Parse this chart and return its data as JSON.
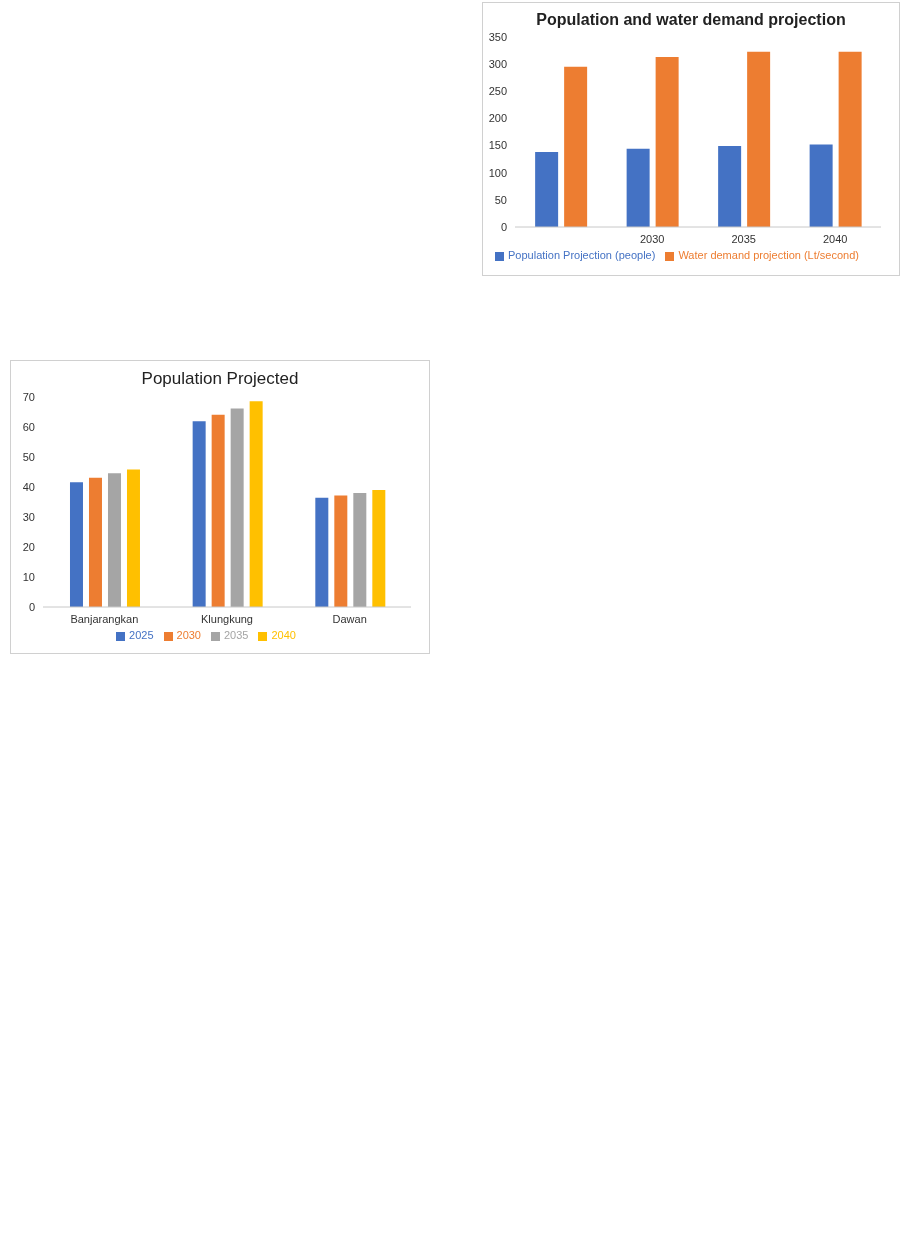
{
  "chart_data": [
    {
      "type": "bar",
      "title": "Population Projected",
      "categories": [
        "Banjarangkan",
        "Klungkung",
        "Dawan"
      ],
      "series": [
        {
          "name": "2025",
          "color": "#4472c4",
          "values": [
            41.6,
            61.9,
            36.4
          ]
        },
        {
          "name": "2030",
          "color": "#ed7d31",
          "values": [
            43.1,
            64.1,
            37.2
          ]
        },
        {
          "name": "2035",
          "color": "#a5a5a5",
          "values": [
            44.6,
            66.2,
            38.0
          ]
        },
        {
          "name": "2040",
          "color": "#ffc000",
          "values": [
            45.8,
            68.6,
            39.0
          ]
        }
      ],
      "ylim": [
        0,
        70
      ],
      "yticks": [
        0,
        10,
        20,
        30,
        40,
        50,
        60,
        70
      ],
      "grid": false,
      "legend": "bottom"
    },
    {
      "type": "bar",
      "title": "Population and water demand projection",
      "categories": [
        null,
        "2030",
        "2035",
        "2040"
      ],
      "series": [
        {
          "name": "Population Projection (people)",
          "color": "#4472c4",
          "values": [
            138,
            144,
            149,
            152
          ]
        },
        {
          "name": "Water demand projection (Lt/second)",
          "color": "#ed7d31",
          "values": [
            295,
            313,
            323,
            323
          ]
        }
      ],
      "ylim": [
        0,
        350
      ],
      "yticks": [
        0,
        50,
        100,
        150,
        200,
        250,
        300,
        350
      ],
      "grid": false,
      "legend": "bottom"
    }
  ]
}
